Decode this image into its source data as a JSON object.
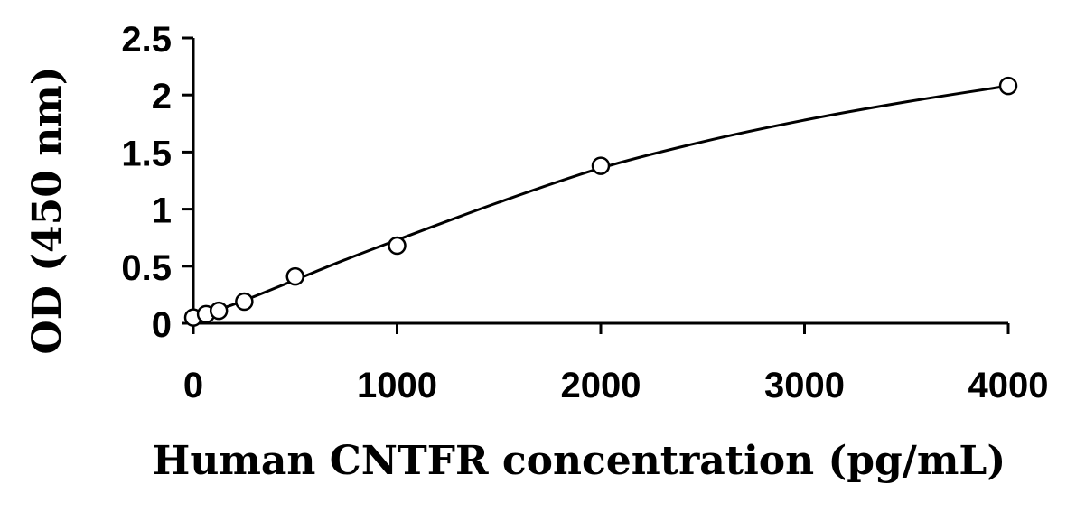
{
  "chart_data": {
    "type": "scatter",
    "title": "",
    "xlabel": "Human CNTFR concentration (pg/mL)",
    "ylabel": "OD (450 nm)",
    "xlim": [
      0,
      4000
    ],
    "ylim": [
      0,
      2.5
    ],
    "x_ticks": [
      0,
      1000,
      2000,
      3000,
      4000
    ],
    "x_tick_labels": [
      "0",
      "1000",
      "2000",
      "3000",
      "4000"
    ],
    "y_ticks": [
      0,
      0.5,
      1,
      1.5,
      2,
      2.5
    ],
    "y_tick_labels": [
      "0",
      "0.5",
      "1",
      "1.5",
      "2",
      "2.5"
    ],
    "grid": false,
    "legend": "none",
    "series": [
      {
        "marker": "open-circle",
        "x": [
          0,
          62.5,
          125,
          250,
          500,
          1000,
          2000,
          4000
        ],
        "y": [
          0.05,
          0.08,
          0.11,
          0.19,
          0.41,
          0.68,
          1.38,
          2.08
        ]
      }
    ],
    "fit_curve": {
      "type": "smooth",
      "x": [
        0,
        250,
        500,
        750,
        1000,
        1500,
        2000,
        2500,
        3000,
        3500,
        4000
      ],
      "y": [
        0.04,
        0.2,
        0.38,
        0.56,
        0.73,
        1.06,
        1.36,
        1.59,
        1.78,
        1.94,
        2.08
      ]
    }
  }
}
